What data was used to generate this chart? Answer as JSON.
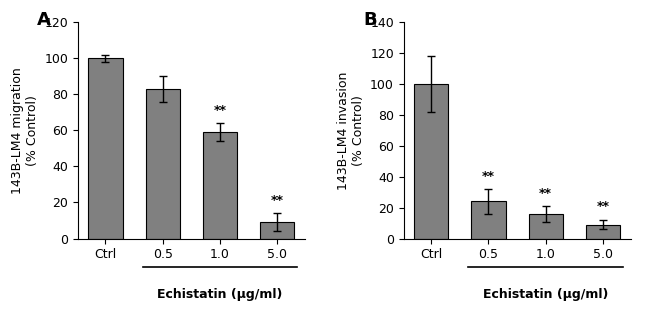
{
  "panel_A": {
    "label": "A",
    "categories": [
      "Ctrl",
      "0.5",
      "1.0",
      "5.0"
    ],
    "values": [
      100,
      83,
      59,
      9
    ],
    "errors": [
      2,
      7,
      5,
      5
    ],
    "ylabel": "143B-LM4 migration\n(% Control)",
    "ylim": [
      0,
      120
    ],
    "yticks": [
      0,
      20,
      40,
      60,
      80,
      100,
      120
    ],
    "significance": [
      "",
      "",
      "**",
      "**"
    ],
    "bar_color": "#808080",
    "xlabel_main": "Echistatin (μg/ml)"
  },
  "panel_B": {
    "label": "B",
    "categories": [
      "Ctrl",
      "0.5",
      "1.0",
      "5.0"
    ],
    "values": [
      100,
      24,
      16,
      9
    ],
    "errors": [
      18,
      8,
      5,
      3
    ],
    "ylabel": "143B-LM4 invasion\n(% Control)",
    "ylim": [
      0,
      140
    ],
    "yticks": [
      0,
      20,
      40,
      60,
      80,
      100,
      120,
      140
    ],
    "significance": [
      "",
      "**",
      "**",
      "**"
    ],
    "bar_color": "#808080",
    "xlabel_main": "Echistatin (μg/ml)"
  },
  "fig_width": 6.5,
  "fig_height": 3.18,
  "dpi": 100
}
